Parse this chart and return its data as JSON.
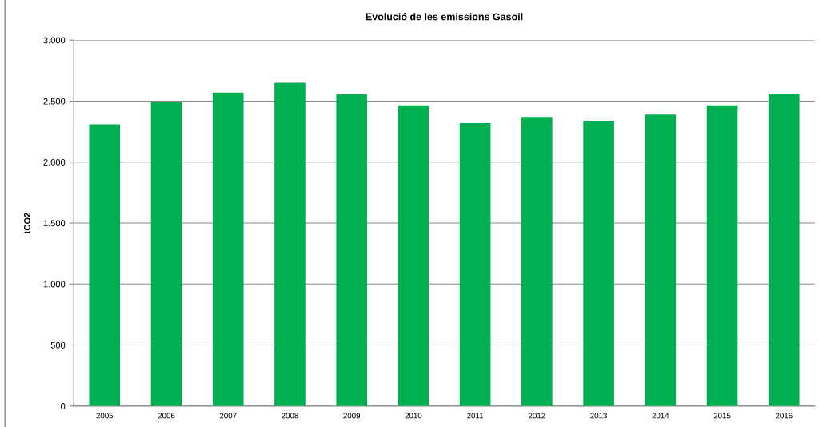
{
  "chart_data": {
    "type": "bar",
    "title": "Evolució de les emissions Gasoil",
    "ylabel": "tCO2",
    "categories": [
      "2005",
      "2006",
      "2007",
      "2008",
      "2009",
      "2010",
      "2011",
      "2012",
      "2013",
      "2014",
      "2015",
      "2016"
    ],
    "values": [
      2310,
      2490,
      2570,
      2650,
      2555,
      2465,
      2320,
      2370,
      2340,
      2390,
      2465,
      2560
    ],
    "color": "#00b050",
    "ylim": [
      0,
      3000
    ],
    "yticks": [
      {
        "value": 0,
        "label": "0"
      },
      {
        "value": 500,
        "label": "500"
      },
      {
        "value": 1000,
        "label": "1.000"
      },
      {
        "value": 1500,
        "label": "1.500"
      },
      {
        "value": 2000,
        "label": "2.000"
      },
      {
        "value": 2500,
        "label": "2.500"
      },
      {
        "value": 3000,
        "label": "3.000"
      }
    ],
    "grid": "y"
  }
}
